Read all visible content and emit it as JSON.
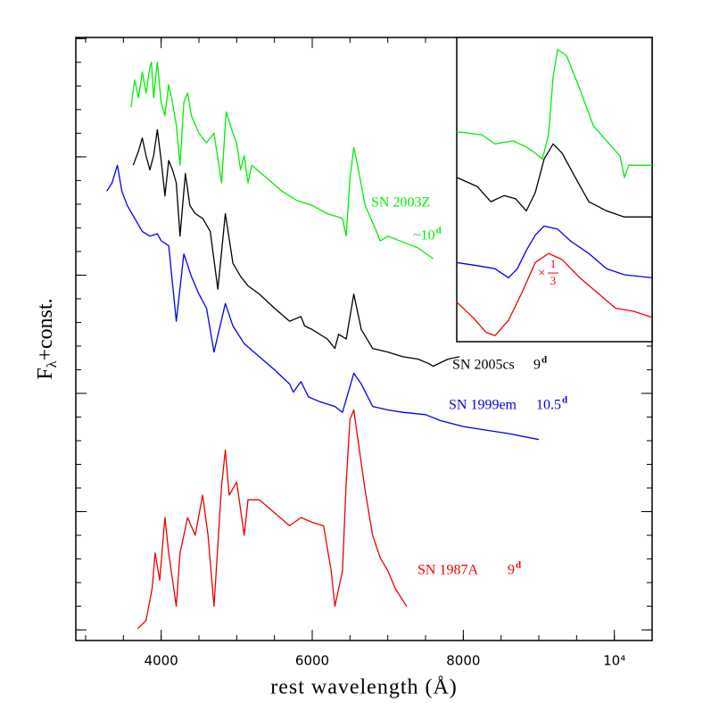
{
  "chart_data": [
    {
      "type": "line",
      "xlabel": "rest wavelength (Å)",
      "ylabel": {
        "main": "F",
        "sub": "λ",
        "rest": "+const."
      },
      "xlim": [
        2870,
        10500
      ],
      "ylim": [
        -0.09,
        5.01
      ],
      "xticks": [
        4000,
        6000,
        8000,
        {
          "value": 10000,
          "label": "10⁴"
        }
      ],
      "yticks": [
        0,
        1,
        2,
        3,
        4,
        5
      ],
      "ytick_labels": false,
      "series": [
        {
          "name": "SN 2003Z",
          "epoch": "~10",
          "epoch_unit": "d",
          "color": "#00ee00",
          "x": [
            3600,
            3650,
            3700,
            3750,
            3800,
            3850,
            3870,
            3900,
            3950,
            4000,
            4050,
            4100,
            4150,
            4200,
            4250,
            4300,
            4350,
            4400,
            4500,
            4600,
            4700,
            4800,
            4860,
            4950,
            5000,
            5050,
            5100,
            5150,
            5200,
            5400,
            5600,
            5800,
            6000,
            6200,
            6400,
            6450,
            6500,
            6550,
            6600,
            6700,
            6850,
            6900,
            7000,
            7200,
            7400,
            7600
          ],
          "values": [
            4.42,
            4.65,
            4.5,
            4.72,
            4.54,
            4.76,
            4.8,
            4.5,
            4.8,
            4.46,
            4.35,
            4.61,
            4.46,
            4.27,
            3.93,
            4.46,
            4.54,
            4.35,
            4.2,
            4.12,
            4.2,
            3.78,
            4.38,
            4.2,
            4.12,
            3.89,
            4.01,
            3.78,
            3.93,
            3.82,
            3.71,
            3.63,
            3.59,
            3.52,
            3.48,
            3.33,
            3.82,
            4.08,
            3.93,
            3.59,
            3.37,
            3.29,
            3.33,
            3.28,
            3.23,
            3.14
          ]
        },
        {
          "name": "SN 2005cs",
          "epoch": "9",
          "epoch_unit": "d",
          "color": "#000000",
          "x": [
            3630,
            3700,
            3750,
            3800,
            3850,
            3900,
            3950,
            4000,
            4050,
            4100,
            4150,
            4200,
            4250,
            4320,
            4380,
            4450,
            4550,
            4650,
            4750,
            4850,
            4950,
            5050,
            5150,
            5300,
            5500,
            5700,
            5850,
            5900,
            6000,
            6200,
            6300,
            6350,
            6450,
            6550,
            6650,
            6800,
            7000,
            7200,
            7400,
            7550,
            7600,
            7800,
            7950
          ],
          "values": [
            3.93,
            4.05,
            4.16,
            4.01,
            3.89,
            4.01,
            4.23,
            3.97,
            3.67,
            3.97,
            3.89,
            3.78,
            3.33,
            3.86,
            3.59,
            3.52,
            3.48,
            3.37,
            2.88,
            3.52,
            3.1,
            2.99,
            2.91,
            2.84,
            2.72,
            2.61,
            2.65,
            2.57,
            2.54,
            2.46,
            2.38,
            2.5,
            2.46,
            2.84,
            2.54,
            2.38,
            2.35,
            2.31,
            2.29,
            2.25,
            2.23,
            2.29,
            2.31
          ]
        },
        {
          "name": "SN 1999em",
          "epoch": "10.5",
          "epoch_unit": "d",
          "color": "#0000ee",
          "x": [
            3280,
            3350,
            3420,
            3480,
            3550,
            3650,
            3750,
            3850,
            3950,
            4000,
            4100,
            4200,
            4300,
            4400,
            4500,
            4600,
            4700,
            4850,
            4950,
            5100,
            5300,
            5500,
            5700,
            5750,
            5850,
            5950,
            6100,
            6300,
            6400,
            6550,
            6650,
            6800,
            7000,
            7200,
            7500,
            7700,
            8000,
            8300,
            8600,
            9000
          ],
          "values": [
            3.71,
            3.78,
            3.93,
            3.71,
            3.59,
            3.48,
            3.37,
            3.33,
            3.35,
            3.29,
            3.25,
            2.61,
            3.18,
            2.99,
            2.84,
            2.72,
            2.35,
            2.76,
            2.57,
            2.42,
            2.31,
            2.2,
            2.08,
            2.01,
            2.1,
            1.97,
            1.93,
            1.89,
            1.84,
            2.17,
            2.08,
            1.89,
            1.86,
            1.84,
            1.82,
            1.77,
            1.72,
            1.69,
            1.66,
            1.61
          ]
        },
        {
          "name": "SN 1987A",
          "epoch": "9",
          "epoch_unit": "d",
          "color": "#ee0000",
          "x": [
            3690,
            3800,
            3880,
            3920,
            3980,
            4050,
            4100,
            4200,
            4250,
            4350,
            4450,
            4550,
            4620,
            4700,
            4800,
            4850,
            4900,
            5000,
            5100,
            5150,
            5300,
            5500,
            5700,
            5850,
            6000,
            6150,
            6250,
            6300,
            6400,
            6450,
            6500,
            6550,
            6600,
            6700,
            6800,
            6900,
            7000,
            7100,
            7250
          ],
          "values": [
            0.01,
            0.08,
            0.35,
            0.65,
            0.42,
            0.95,
            0.65,
            0.2,
            0.65,
            0.95,
            0.8,
            1.14,
            0.8,
            0.2,
            1.22,
            1.52,
            1.14,
            1.25,
            0.8,
            1.1,
            1.1,
            0.99,
            0.88,
            0.95,
            0.91,
            0.88,
            0.5,
            0.2,
            0.5,
            1.25,
            1.78,
            1.86,
            1.63,
            1.18,
            0.8,
            0.61,
            0.5,
            0.35,
            0.2
          ]
        }
      ]
    },
    {
      "type": "line",
      "xlim": [
        6100,
        7100
      ],
      "ylim": [
        0,
        1
      ],
      "annotation": {
        "text": "×",
        "numerator": "1",
        "denominator": "3"
      },
      "series": [
        {
          "color": "#00ee00",
          "x": [
            6100,
            6228,
            6296,
            6388,
            6456,
            6502,
            6538,
            6570,
            6593,
            6616,
            6662,
            6730,
            6799,
            6867,
            6936,
            6958,
            6981,
            7100
          ],
          "values": [
            0.69,
            0.68,
            0.65,
            0.66,
            0.64,
            0.62,
            0.6,
            0.68,
            0.87,
            0.96,
            0.94,
            0.83,
            0.71,
            0.66,
            0.61,
            0.54,
            0.58,
            0.58
          ]
        },
        {
          "color": "#000000",
          "x": [
            6100,
            6205,
            6274,
            6342,
            6401,
            6456,
            6502,
            6547,
            6593,
            6639,
            6707,
            6776,
            6867,
            6958,
            7100
          ],
          "values": [
            0.54,
            0.51,
            0.46,
            0.48,
            0.47,
            0.43,
            0.49,
            0.6,
            0.65,
            0.62,
            0.54,
            0.46,
            0.43,
            0.41,
            0.41
          ]
        },
        {
          "color": "#0000ee",
          "x": [
            6100,
            6205,
            6296,
            6365,
            6410,
            6456,
            6502,
            6547,
            6616,
            6684,
            6776,
            6867,
            6958,
            7100
          ],
          "values": [
            0.26,
            0.25,
            0.24,
            0.21,
            0.24,
            0.3,
            0.35,
            0.38,
            0.37,
            0.33,
            0.29,
            0.24,
            0.22,
            0.21
          ]
        },
        {
          "color": "#ee0000",
          "x": [
            6100,
            6182,
            6251,
            6296,
            6365,
            6433,
            6502,
            6570,
            6639,
            6730,
            6821,
            6913,
            7004,
            7100
          ],
          "values": [
            0.13,
            0.08,
            0.03,
            0.02,
            0.07,
            0.16,
            0.26,
            0.29,
            0.27,
            0.21,
            0.16,
            0.11,
            0.1,
            0.08
          ]
        }
      ]
    }
  ]
}
